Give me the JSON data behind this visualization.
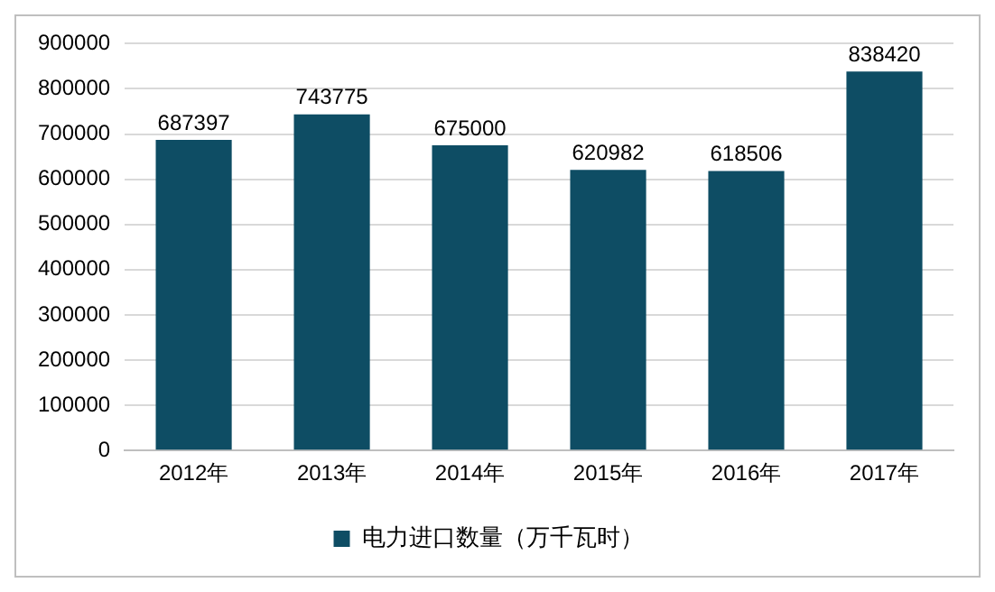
{
  "chart_data": {
    "type": "bar",
    "categories": [
      "2012年",
      "2013年",
      "2014年",
      "2015年",
      "2016年",
      "2017年"
    ],
    "series": [
      {
        "name": "电力进口数量（万千瓦时）",
        "color": "#0e4d64",
        "values": [
          687397,
          743775,
          675000,
          620982,
          618506,
          838420
        ]
      }
    ],
    "ylim": [
      0,
      900000
    ],
    "yticks": [
      0,
      100000,
      200000,
      300000,
      400000,
      500000,
      600000,
      700000,
      800000,
      900000
    ],
    "grid": "y",
    "legend": "bottom",
    "data_labels": true
  }
}
